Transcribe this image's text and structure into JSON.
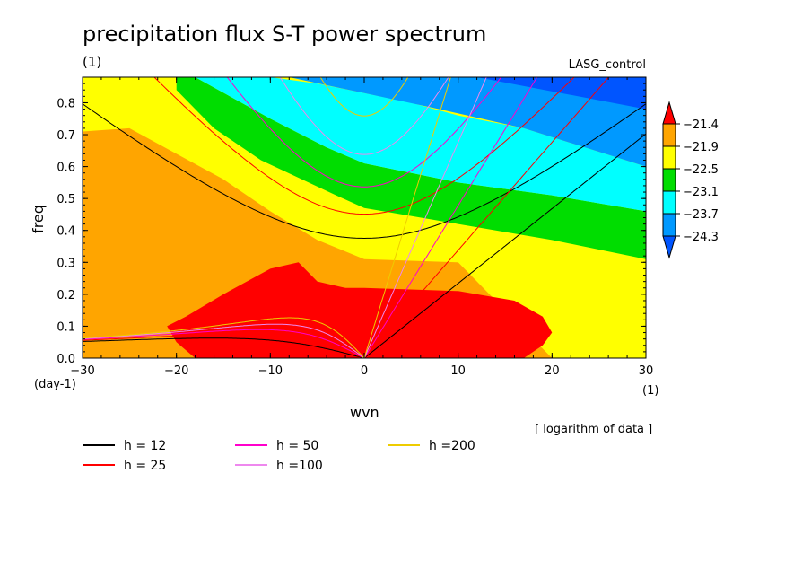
{
  "chart_data": {
    "type": "heatmap",
    "title": "precipitation flux S-T power spectrum",
    "subtitle_left": "(1)",
    "subtitle_right": "LASG_control",
    "xlabel": "wvn",
    "ylabel": "freq",
    "x_unit": "(1)",
    "y_unit": "(day-1)",
    "xlim": [
      -30,
      30
    ],
    "ylim": [
      0,
      0.88
    ],
    "xticks": [
      -30,
      -20,
      -10,
      0,
      10,
      20,
      30
    ],
    "yticks": [
      0.0,
      0.1,
      0.2,
      0.3,
      0.4,
      0.5,
      0.6,
      0.7,
      0.8
    ],
    "note": "[ logarithm of data ]",
    "colorbar": {
      "levels": [
        "-21.4",
        "-21.9",
        "-22.5",
        "-23.1",
        "-23.7",
        "-24.3"
      ],
      "colors": [
        "#ff0000",
        "#ffa500",
        "#ffff00",
        "#00dd00",
        "#00ffff",
        "#0099ff",
        "#0055ff"
      ]
    },
    "regions": [
      {
        "name": "lt-24.3",
        "color": "#0055ff",
        "x": [
          12,
          30,
          30
        ],
        "y": [
          0.88,
          0.88,
          0.78
        ]
      },
      {
        "name": "-24.3..-23.7",
        "color": "#0099ff",
        "x": [
          -10,
          30,
          30,
          17,
          8,
          0,
          -8
        ],
        "y": [
          0.88,
          0.88,
          0.6,
          0.72,
          0.78,
          0.83,
          0.88
        ]
      },
      {
        "name": "-23.7..-23.1",
        "color": "#00ffff",
        "x": [
          -20,
          -10,
          -5,
          0,
          5,
          10,
          17,
          30,
          30,
          20,
          10,
          0,
          -4,
          -10,
          -18
        ],
        "y": [
          0.88,
          0.88,
          0.86,
          0.83,
          0.8,
          0.76,
          0.72,
          0.6,
          0.46,
          0.51,
          0.55,
          0.61,
          0.66,
          0.75,
          0.88
        ]
      },
      {
        "name": "-23.1..-22.5",
        "color": "#00dd00",
        "x": [
          -20,
          -18,
          -10,
          -4,
          0,
          10,
          20,
          30,
          30,
          20,
          10,
          0,
          -3,
          -11,
          -16,
          -20
        ],
        "y": [
          0.88,
          0.88,
          0.75,
          0.66,
          0.61,
          0.55,
          0.51,
          0.46,
          0.31,
          0.37,
          0.42,
          0.47,
          0.51,
          0.62,
          0.72,
          0.84
        ]
      },
      {
        "name": "-22.5..-21.9",
        "color": "#ffff00",
        "x": [
          -30,
          -20,
          -16,
          -11,
          -3,
          0,
          10,
          20,
          30,
          30,
          20,
          10,
          0,
          -5,
          -10,
          -15,
          -20,
          -25,
          -30
        ],
        "y": [
          0.88,
          0.88,
          0.72,
          0.62,
          0.51,
          0.47,
          0.42,
          0.37,
          0.31,
          0.0,
          0.0,
          0.3,
          0.31,
          0.37,
          0.46,
          0.56,
          0.64,
          0.72,
          0.71
        ]
      },
      {
        "name": "-21.9..-21.4",
        "color": "#ffa500",
        "x": [
          -30,
          -25,
          -20,
          -15,
          -10,
          -5,
          0,
          10,
          20,
          30,
          30,
          28,
          20,
          0,
          -20,
          -30
        ],
        "y": [
          0.71,
          0.72,
          0.64,
          0.56,
          0.46,
          0.37,
          0.31,
          0.3,
          0.0,
          0.0,
          0.0,
          0.0,
          0.0,
          0.0,
          0.0,
          0.0
        ]
      },
      {
        "name": "gt-21.4",
        "color": "#ff0000",
        "x": [
          -18,
          -20,
          -21,
          -19,
          -15,
          -10,
          -7,
          -5,
          -2,
          0,
          10,
          16,
          19,
          20,
          19,
          17,
          0,
          -17
        ],
        "y": [
          0.0,
          0.05,
          0.1,
          0.13,
          0.2,
          0.28,
          0.3,
          0.24,
          0.22,
          0.22,
          0.21,
          0.18,
          0.13,
          0.08,
          0.04,
          0.0,
          0.0,
          0.0
        ]
      }
    ],
    "series": [
      {
        "name": "h = 12",
        "color": "#000000"
      },
      {
        "name": "h = 25",
        "color": "#ff0000"
      },
      {
        "name": "h = 50",
        "color": "#ff00cc"
      },
      {
        "name": "h =100",
        "color": "#ee88ee"
      },
      {
        "name": "h =200",
        "color": "#eecc00"
      }
    ]
  }
}
